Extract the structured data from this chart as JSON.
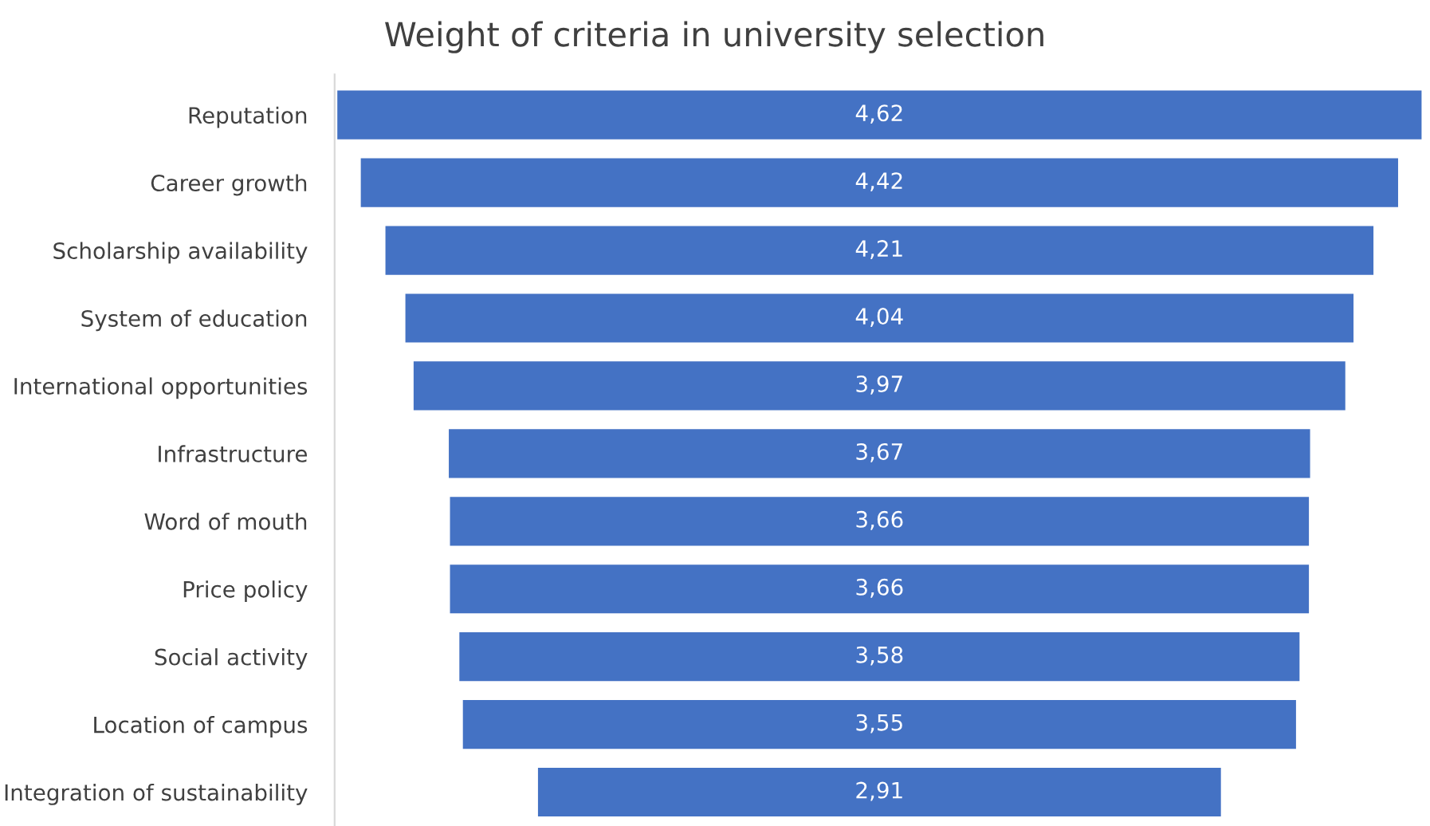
{
  "chart_data": {
    "type": "other",
    "title": "Weight of criteria in university selection",
    "categories": [
      "Reputation",
      "Career growth",
      "Scholarship availability",
      "System of education",
      "International opportunities",
      "Infrastructure",
      "Word of mouth",
      "Price policy",
      "Social activity",
      "Location of campus",
      "Integration of sustainability"
    ],
    "values": [
      4.62,
      4.42,
      4.21,
      4.04,
      3.97,
      3.67,
      3.66,
      3.66,
      3.58,
      3.55,
      2.91
    ],
    "value_labels": [
      "4,62",
      "4,42",
      "4,21",
      "4,04",
      "3,97",
      "3,67",
      "3,66",
      "3,66",
      "3,58",
      "3,55",
      "2,91"
    ],
    "color": "#4472c4"
  }
}
